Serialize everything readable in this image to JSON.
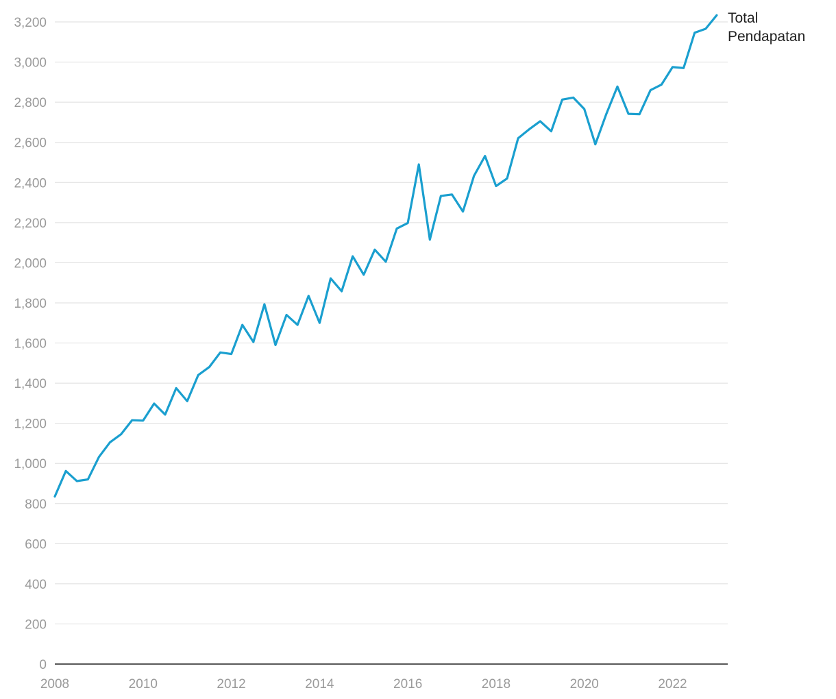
{
  "chart_data": {
    "type": "line",
    "title": "",
    "xlabel": "",
    "ylabel": "",
    "ylim": [
      0,
      3200
    ],
    "xlim": [
      2008,
      2023.25
    ],
    "grid": true,
    "yticks": [
      0,
      200,
      400,
      600,
      800,
      1000,
      1200,
      1400,
      1600,
      1800,
      2000,
      2200,
      2400,
      2600,
      2800,
      3000,
      3200
    ],
    "ytick_labels": [
      "0",
      "200",
      "400",
      "600",
      "800",
      "1,000",
      "1,200",
      "1,400",
      "1,600",
      "1,800",
      "2,000",
      "2,200",
      "2,400",
      "2,600",
      "2,800",
      "3,000",
      "3,200"
    ],
    "xticks": [
      2008,
      2010,
      2012,
      2014,
      2016,
      2018,
      2020,
      2022
    ],
    "xtick_labels": [
      "2008",
      "2010",
      "2012",
      "2014",
      "2016",
      "2018",
      "2020",
      "2022"
    ],
    "legend_position": "line-end label",
    "series": [
      {
        "name_lines": [
          "Total",
          "Pendapatan"
        ],
        "color": "#1a9fcf",
        "x": [
          2008.0,
          2008.25,
          2008.5,
          2008.75,
          2009.0,
          2009.25,
          2009.5,
          2009.75,
          2010.0,
          2010.25,
          2010.5,
          2010.75,
          2011.0,
          2011.25,
          2011.5,
          2011.75,
          2012.0,
          2012.25,
          2012.5,
          2012.75,
          2013.0,
          2013.25,
          2013.5,
          2013.75,
          2014.0,
          2014.25,
          2014.5,
          2014.75,
          2015.0,
          2015.25,
          2015.5,
          2015.75,
          2016.0,
          2016.25,
          2016.5,
          2016.75,
          2017.0,
          2017.25,
          2017.5,
          2017.75,
          2018.0,
          2018.25,
          2018.5,
          2018.75,
          2019.0,
          2019.25,
          2019.5,
          2019.75,
          2020.0,
          2020.25,
          2020.5,
          2020.75,
          2021.0,
          2021.25,
          2021.5,
          2021.75,
          2022.0,
          2022.25,
          2022.5,
          2022.75,
          2023.0
        ],
        "y": [
          835,
          962,
          912,
          920,
          1032,
          1105,
          1145,
          1215,
          1213,
          1298,
          1243,
          1375,
          1310,
          1440,
          1480,
          1553,
          1545,
          1690,
          1605,
          1793,
          1590,
          1740,
          1690,
          1835,
          1700,
          1922,
          1858,
          2032,
          1940,
          2065,
          2005,
          2170,
          2198,
          2490,
          2115,
          2333,
          2340,
          2255,
          2433,
          2532,
          2382,
          2420,
          2620,
          2665,
          2705,
          2655,
          2813,
          2823,
          2766,
          2590,
          2742,
          2878,
          2742,
          2740,
          2860,
          2888,
          2975,
          2970,
          3146,
          3166,
          3233
        ]
      }
    ]
  }
}
